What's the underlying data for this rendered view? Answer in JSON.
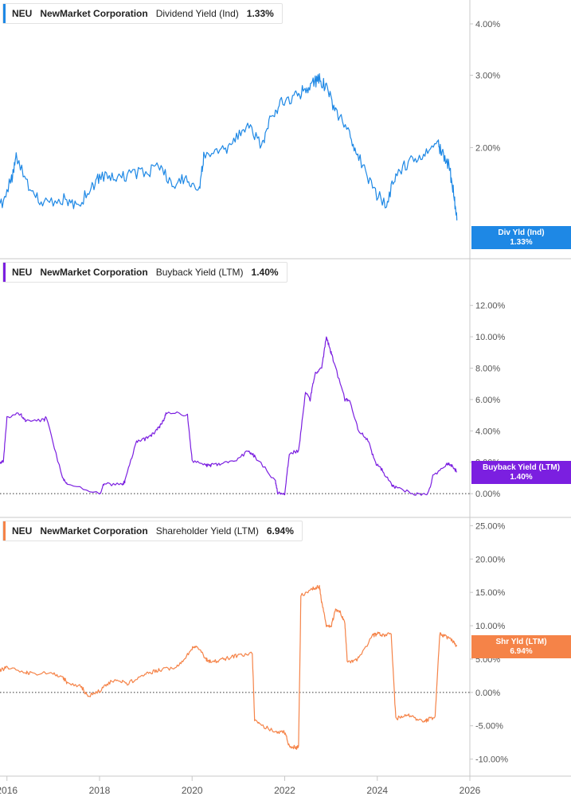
{
  "colors": {
    "p1": "#1e88e5",
    "p2": "#7b1fe0",
    "p3": "#f58348",
    "axis": "#c8c8c8",
    "tick": "#555555"
  },
  "panels": [
    {
      "ticker": "NEU",
      "company": "NewMarket Corporation",
      "metric": "Dividend Yield (Ind)",
      "value": "1.33%",
      "flag_name": "Div Yld (Ind)",
      "flag_value": "1.33%"
    },
    {
      "ticker": "NEU",
      "company": "NewMarket Corporation",
      "metric": "Buyback Yield (LTM)",
      "value": "1.40%",
      "flag_name": "Buyback Yield (LTM)",
      "flag_value": "1.40%"
    },
    {
      "ticker": "NEU",
      "company": "NewMarket Corporation",
      "metric": "Shareholder Yield (LTM)",
      "value": "6.94%",
      "flag_name": "Shr Yld (LTM)",
      "flag_value": "6.94%"
    }
  ],
  "chart_data": [
    {
      "type": "line",
      "title": "Dividend Yield (Ind)",
      "y_ticks": [
        "2.00%",
        "3.00%",
        "4.00%"
      ],
      "ylim": [
        1.2,
        4.0
      ],
      "y_scale": "log",
      "grid": false,
      "series": [
        {
          "name": "Div Yld (Ind)",
          "x": [
            2015.85,
            2016.1,
            2016.2,
            2016.5,
            2016.8,
            2017.2,
            2017.5,
            2017.8,
            2018.0,
            2018.3,
            2018.6,
            2019.0,
            2019.3,
            2019.6,
            2019.9,
            2020.15,
            2020.25,
            2020.6,
            2020.9,
            2021.2,
            2021.5,
            2021.7,
            2021.9,
            2022.2,
            2022.4,
            2022.6,
            2022.75,
            2022.9,
            2023.1,
            2023.4,
            2023.6,
            2023.9,
            2024.2,
            2024.4,
            2024.7,
            2025.0,
            2025.3,
            2025.4,
            2025.55,
            2025.65,
            2025.72
          ],
          "y": [
            1.43,
            1.68,
            1.9,
            1.55,
            1.46,
            1.5,
            1.44,
            1.58,
            1.7,
            1.68,
            1.72,
            1.74,
            1.8,
            1.61,
            1.7,
            1.55,
            1.9,
            1.95,
            2.05,
            2.3,
            2.0,
            2.4,
            2.55,
            2.65,
            2.75,
            2.85,
            2.95,
            2.8,
            2.45,
            2.15,
            1.9,
            1.58,
            1.45,
            1.72,
            1.85,
            1.9,
            2.05,
            1.95,
            1.8,
            1.55,
            1.33
          ]
        }
      ]
    },
    {
      "type": "line",
      "title": "Buyback Yield (LTM)",
      "y_ticks": [
        "0.00%",
        "2.00%",
        "4.00%",
        "6.00%",
        "8.00%",
        "10.00%",
        "12.00%"
      ],
      "ylim": [
        -0.5,
        13.2
      ],
      "grid": false,
      "series": [
        {
          "name": "Buyback Yield (LTM)",
          "x": [
            2015.85,
            2015.92,
            2016.0,
            2016.3,
            2016.4,
            2016.8,
            2016.85,
            2017.2,
            2017.3,
            2018.0,
            2018.1,
            2018.5,
            2018.55,
            2018.8,
            2019.0,
            2019.2,
            2019.3,
            2019.4,
            2019.45,
            2019.9,
            2020.0,
            2020.3,
            2020.4,
            2020.6,
            2020.9,
            2021.2,
            2021.3,
            2021.35,
            2021.8,
            2021.85,
            2022.0,
            2022.1,
            2022.3,
            2022.45,
            2022.55,
            2022.65,
            2022.8,
            2022.9,
            2023.0,
            2023.05,
            2023.3,
            2023.4,
            2023.6,
            2023.8,
            2023.95,
            2024.1,
            2024.3,
            2024.4,
            2024.8,
            2025.1,
            2025.2,
            2025.5,
            2025.6,
            2025.72
          ],
          "y": [
            2.0,
            2.0,
            4.9,
            5.1,
            4.6,
            4.7,
            4.9,
            1.0,
            0.7,
            0.0,
            0.6,
            0.6,
            0.8,
            3.3,
            3.5,
            3.9,
            4.3,
            4.8,
            5.2,
            5.0,
            2.1,
            1.8,
            1.8,
            1.9,
            2.0,
            2.7,
            2.5,
            2.4,
            0.8,
            0.0,
            0.0,
            2.6,
            2.7,
            6.5,
            6.0,
            7.6,
            8.0,
            10.0,
            9.0,
            8.5,
            6.0,
            5.9,
            4.0,
            3.4,
            2.0,
            1.5,
            0.6,
            0.4,
            0.0,
            0.0,
            1.1,
            1.9,
            1.8,
            1.4
          ]
        }
      ]
    },
    {
      "type": "line",
      "title": "Shareholder Yield (LTM)",
      "y_ticks": [
        "-10.00%",
        "-5.00%",
        "0.00%",
        "5.00%",
        "10.00%",
        "15.00%",
        "20.00%",
        "25.00%"
      ],
      "ylim": [
        -11,
        26
      ],
      "grid": false,
      "series": [
        {
          "name": "Shr Yld (LTM)",
          "x": [
            2015.85,
            2016.0,
            2016.4,
            2016.5,
            2017.0,
            2017.2,
            2017.3,
            2017.6,
            2017.75,
            2018.0,
            2018.2,
            2018.4,
            2018.6,
            2018.9,
            2019.1,
            2019.3,
            2019.6,
            2019.8,
            2020.0,
            2020.1,
            2020.3,
            2020.4,
            2020.6,
            2020.8,
            2021.0,
            2021.3,
            2021.35,
            2021.5,
            2021.8,
            2022.0,
            2022.1,
            2022.25,
            2022.3,
            2022.35,
            2022.6,
            2022.75,
            2022.8,
            2022.9,
            2023.0,
            2023.1,
            2023.2,
            2023.3,
            2023.35,
            2023.5,
            2023.6,
            2023.9,
            2024.0,
            2024.1,
            2024.3,
            2024.4,
            2024.6,
            2024.8,
            2025.0,
            2025.1,
            2025.25,
            2025.35,
            2025.45,
            2025.6,
            2025.72
          ],
          "y": [
            3.3,
            3.8,
            3.1,
            2.9,
            2.8,
            2.3,
            1.5,
            0.9,
            -0.5,
            0.2,
            1.5,
            1.8,
            1.3,
            2.4,
            3.0,
            3.4,
            3.6,
            4.7,
            6.6,
            7.0,
            5.0,
            4.6,
            4.8,
            5.2,
            5.6,
            5.8,
            -4.0,
            -5.0,
            -5.8,
            -6.0,
            -8.0,
            -8.3,
            -8.0,
            14.5,
            15.6,
            15.8,
            13.5,
            10.0,
            9.7,
            12.5,
            12.0,
            10.5,
            4.7,
            4.6,
            5.1,
            8.5,
            8.8,
            8.6,
            8.8,
            -4.0,
            -3.3,
            -3.8,
            -4.3,
            -4.1,
            -3.6,
            8.8,
            8.5,
            8.0,
            6.94
          ]
        }
      ]
    }
  ],
  "x_axis": {
    "range": [
      2015.85,
      2026.0
    ],
    "ticks": [
      {
        "value": 2016,
        "label": "2016"
      },
      {
        "value": 2018,
        "label": "2018"
      },
      {
        "value": 2020,
        "label": "2020"
      },
      {
        "value": 2022,
        "label": "2022"
      },
      {
        "value": 2024,
        "label": "2024"
      },
      {
        "value": 2026,
        "label": "2026"
      }
    ]
  }
}
